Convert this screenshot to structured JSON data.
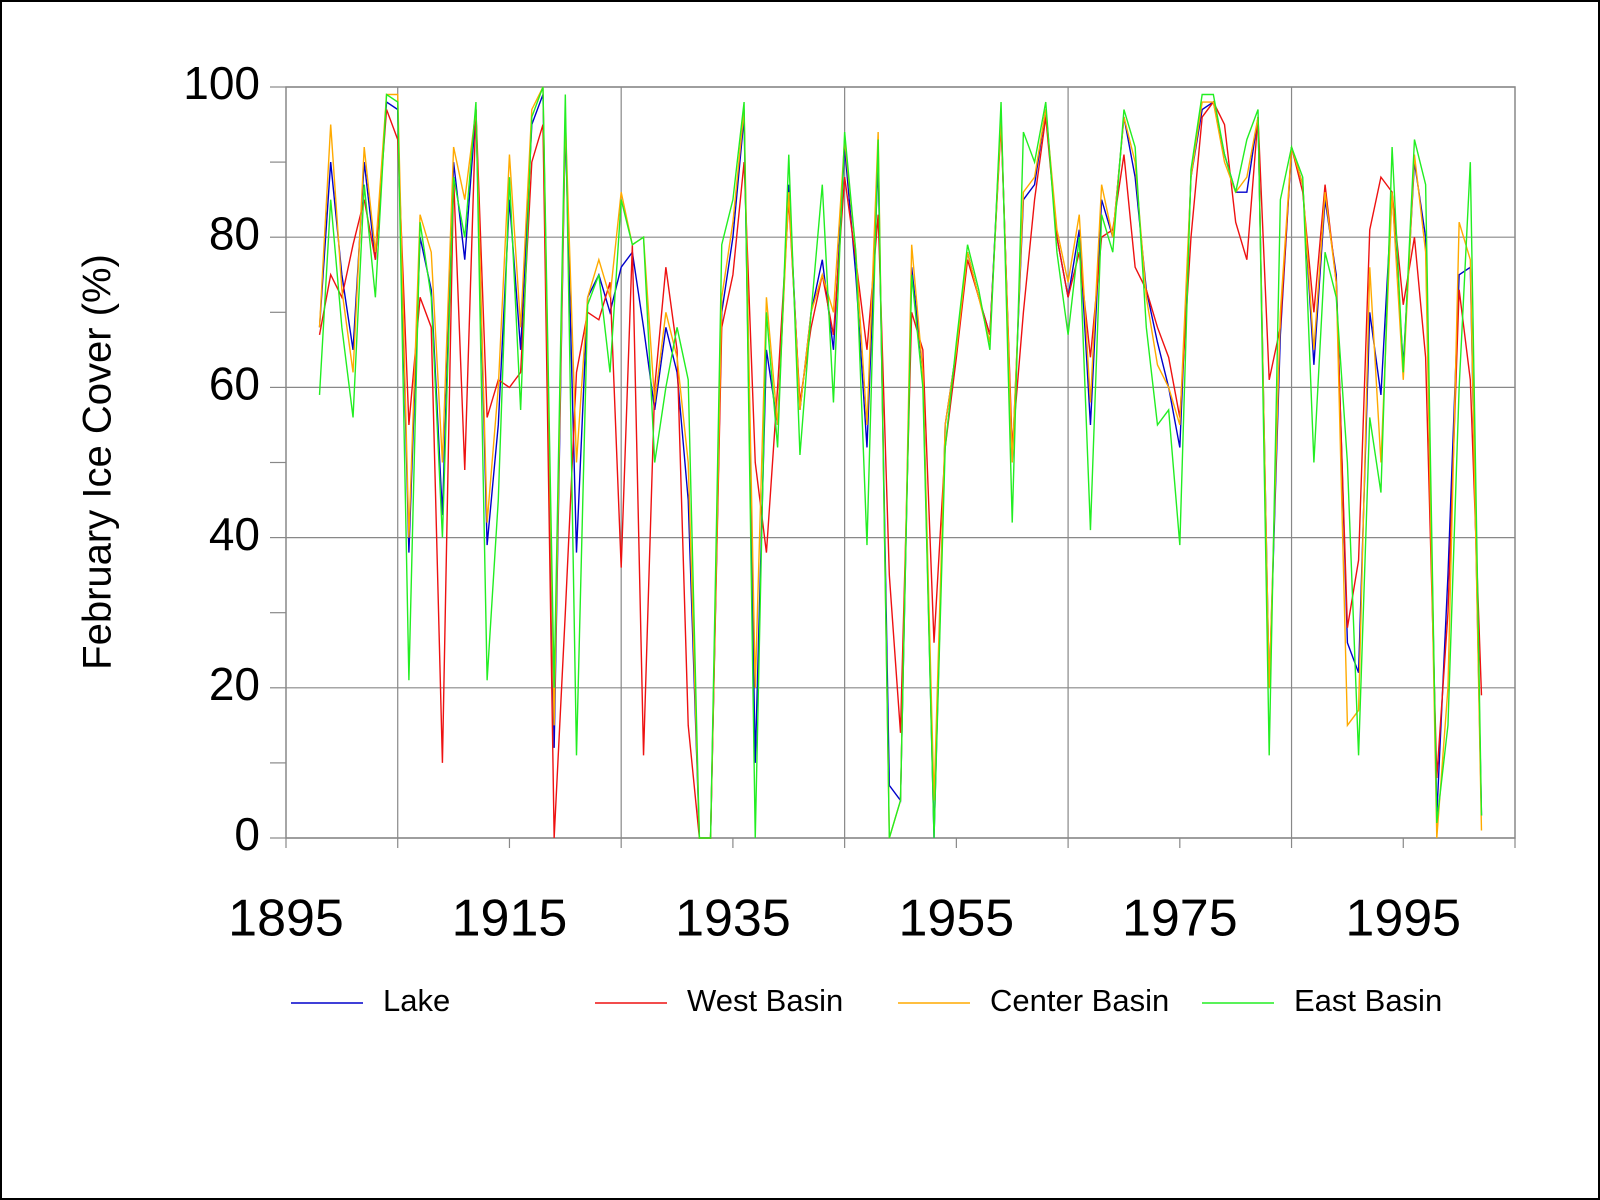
{
  "chart_data": {
    "type": "line",
    "ylabel": "February Ice Cover (%)",
    "x": [
      1898,
      1899,
      1900,
      1901,
      1902,
      1903,
      1904,
      1905,
      1906,
      1907,
      1908,
      1909,
      1910,
      1911,
      1912,
      1913,
      1914,
      1915,
      1916,
      1917,
      1918,
      1919,
      1920,
      1921,
      1922,
      1923,
      1924,
      1925,
      1926,
      1927,
      1928,
      1929,
      1930,
      1931,
      1932,
      1933,
      1934,
      1935,
      1936,
      1937,
      1938,
      1939,
      1940,
      1941,
      1942,
      1943,
      1944,
      1945,
      1946,
      1947,
      1948,
      1949,
      1950,
      1951,
      1952,
      1953,
      1954,
      1955,
      1956,
      1957,
      1958,
      1959,
      1960,
      1961,
      1962,
      1963,
      1964,
      1965,
      1966,
      1967,
      1968,
      1969,
      1970,
      1971,
      1972,
      1973,
      1974,
      1975,
      1976,
      1977,
      1978,
      1979,
      1980,
      1981,
      1982,
      1983,
      1984,
      1985,
      1986,
      1987,
      1988,
      1989,
      1990,
      1991,
      1992,
      1993,
      1994,
      1995,
      1996,
      1997,
      1998,
      1999,
      2000,
      2001,
      2002
    ],
    "series": [
      {
        "name": "Lake",
        "color": "#0000cc",
        "values": [
          68,
          90,
          75,
          65,
          90,
          77,
          98,
          97,
          38,
          80,
          73,
          43,
          90,
          77,
          97,
          39,
          55,
          85,
          65,
          95,
          99,
          12,
          95,
          38,
          72,
          75,
          70,
          76,
          78,
          68,
          57,
          68,
          62,
          45,
          0,
          0,
          70,
          80,
          96,
          10,
          65,
          55,
          87,
          57,
          70,
          77,
          65,
          92,
          75,
          52,
          90,
          7,
          5,
          76,
          62,
          0,
          55,
          65,
          78,
          72,
          67,
          96,
          50,
          85,
          87,
          97,
          80,
          72,
          81,
          55,
          85,
          80,
          96,
          88,
          73,
          66,
          60,
          52,
          88,
          97,
          98,
          91,
          86,
          86,
          96,
          20,
          67,
          92,
          87,
          63,
          85,
          75,
          26,
          22,
          70,
          59,
          86,
          63,
          90,
          80,
          3,
          35,
          75,
          76,
          3
        ]
      },
      {
        "name": "West Basin",
        "color": "#ee1111",
        "values": [
          67,
          75,
          72,
          79,
          85,
          77,
          97,
          93,
          55,
          72,
          68,
          10,
          88,
          49,
          97,
          56,
          61,
          60,
          62,
          90,
          95,
          0,
          30,
          62,
          70,
          69,
          74,
          36,
          79,
          11,
          60,
          76,
          65,
          15,
          0,
          0,
          68,
          75,
          90,
          50,
          38,
          60,
          85,
          58,
          68,
          75,
          67,
          88,
          77,
          65,
          83,
          35,
          14,
          70,
          65,
          26,
          52,
          64,
          77,
          72,
          67,
          95,
          52,
          70,
          85,
          96,
          80,
          72,
          78,
          64,
          80,
          81,
          91,
          76,
          73,
          68,
          64,
          56,
          80,
          96,
          98,
          95,
          82,
          77,
          96,
          61,
          68,
          92,
          86,
          70,
          87,
          74,
          28,
          37,
          81,
          88,
          86,
          71,
          80,
          64,
          8,
          30,
          73,
          61,
          19
        ]
      },
      {
        "name": "Center Basin",
        "color": "#ffaa00",
        "values": [
          68,
          95,
          73,
          62,
          92,
          78,
          99,
          99,
          40,
          83,
          78,
          50,
          92,
          85,
          97,
          42,
          60,
          91,
          68,
          97,
          100,
          15,
          96,
          50,
          72,
          77,
          72,
          86,
          79,
          80,
          58,
          70,
          64,
          50,
          0,
          0,
          72,
          82,
          97,
          20,
          72,
          55,
          86,
          57,
          70,
          75,
          70,
          93,
          78,
          55,
          94,
          0,
          5,
          79,
          62,
          5,
          55,
          65,
          78,
          72,
          66,
          96,
          50,
          86,
          88,
          97,
          81,
          74,
          83,
          58,
          87,
          80,
          96,
          90,
          72,
          63,
          60,
          55,
          88,
          98,
          98,
          90,
          86,
          88,
          96,
          20,
          70,
          92,
          87,
          65,
          86,
          74,
          15,
          17,
          76,
          50,
          86,
          61,
          91,
          78,
          0,
          20,
          82,
          77,
          1
        ]
      },
      {
        "name": "East Basin",
        "color": "#22ee22",
        "values": [
          59,
          85,
          68,
          56,
          87,
          72,
          99,
          98,
          21,
          82,
          72,
          40,
          88,
          80,
          98,
          21,
          45,
          88,
          57,
          96,
          100,
          20,
          99,
          11,
          71,
          75,
          62,
          85,
          79,
          80,
          50,
          60,
          68,
          61,
          0,
          0,
          79,
          85,
          98,
          0,
          70,
          52,
          91,
          51,
          70,
          87,
          58,
          94,
          78,
          39,
          93,
          0,
          5,
          75,
          60,
          0,
          52,
          66,
          79,
          73,
          65,
          98,
          42,
          94,
          90,
          98,
          78,
          67,
          80,
          41,
          83,
          78,
          97,
          92,
          68,
          55,
          57,
          39,
          89,
          99,
          99,
          91,
          86,
          93,
          97,
          11,
          85,
          92,
          88,
          50,
          78,
          72,
          50,
          11,
          56,
          46,
          92,
          62,
          93,
          87,
          2,
          15,
          60,
          90,
          3
        ]
      }
    ],
    "xlim": [
      1895,
      2005
    ],
    "ylim": [
      0,
      100
    ],
    "xticks": [
      1895,
      1915,
      1935,
      1955,
      1975,
      1995
    ],
    "yticks": [
      0,
      20,
      40,
      60,
      80,
      100
    ],
    "grid": true,
    "legend": "bottom"
  }
}
